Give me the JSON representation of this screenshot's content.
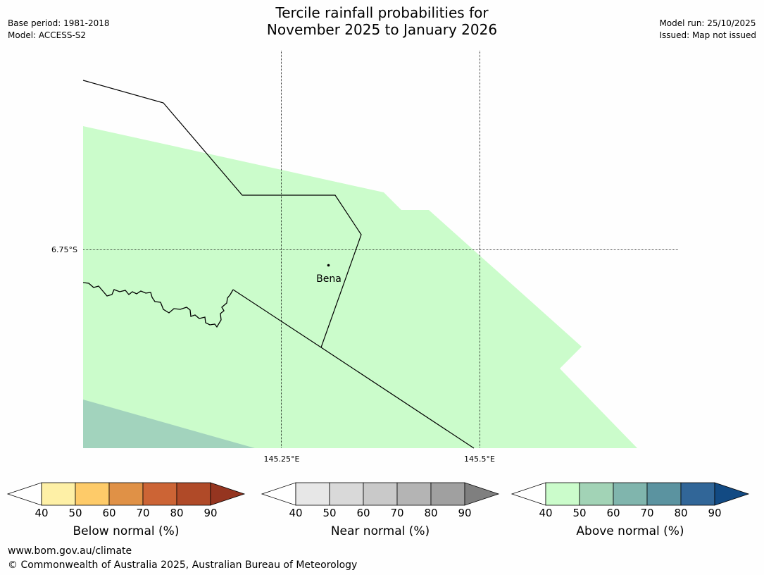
{
  "title": {
    "line1": "Tercile rainfall probabilities for",
    "line2": "November 2025 to January 2026"
  },
  "meta_left": {
    "base_period": "Base period: 1981-2018",
    "model": "Model: ACCESS-S2"
  },
  "meta_right": {
    "model_run": "Model run: 25/10/2025",
    "issued": "Issued: Map not issued"
  },
  "map": {
    "lat_label": "6.75°S",
    "lon_labels": [
      "145.25°E",
      "145.5°E"
    ],
    "place_name": "Bena",
    "colors": {
      "above_50": "#cbfccb",
      "above_60": "#a2d3bd",
      "boundary": "#000000",
      "gridline": "#000000"
    }
  },
  "colorbars": [
    {
      "name": "below",
      "label": "Below normal (%)",
      "ticks": [
        "40",
        "50",
        "60",
        "70",
        "80",
        "90"
      ],
      "colors": [
        "#fef0a6",
        "#fecb69",
        "#e09146",
        "#cc6435",
        "#b04a28",
        "#953520"
      ]
    },
    {
      "name": "near",
      "label": "Near normal (%)",
      "ticks": [
        "40",
        "50",
        "60",
        "70",
        "80",
        "90"
      ],
      "colors": [
        "#e7e7e7",
        "#d9d9d9",
        "#c9c9c9",
        "#b4b4b4",
        "#a0a0a0",
        "#7f7f7f"
      ]
    },
    {
      "name": "above",
      "label": "Above normal (%)",
      "ticks": [
        "40",
        "50",
        "60",
        "70",
        "80",
        "90"
      ],
      "colors": [
        "#cbfccb",
        "#a2d3b6",
        "#80b5ad",
        "#5b93a0",
        "#316698",
        "#124a83"
      ]
    }
  ],
  "footer": {
    "url": "www.bom.gov.au/climate",
    "copyright": "© Commonwealth of Australia 2025, Australian Bureau of Meteorology"
  }
}
